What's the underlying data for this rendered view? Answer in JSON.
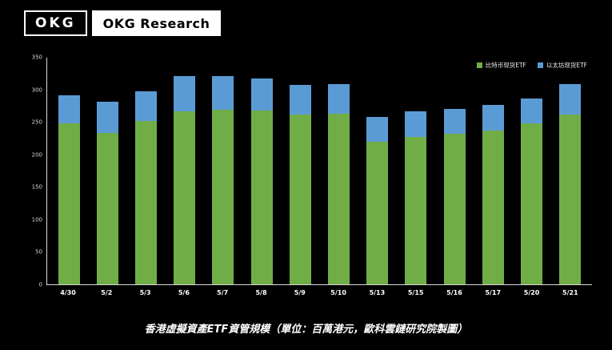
{
  "header": {
    "logo_text": "OKG",
    "brand_text": "OKG Research"
  },
  "caption": "香港虛擬資產ETF資管規模（單位：百萬港元，歐科雲鏈研究院製圖）",
  "colors": {
    "background": "#000000",
    "bitcoin_green": "#70ad47",
    "ethereum_blue": "#5b9bd5",
    "axis": "#d9d9d9",
    "text": "#ffffff"
  },
  "chart_data": {
    "type": "bar",
    "stacked": true,
    "title": "香港虛擬資產ETF資管規模",
    "unit_note": "單位：百萬港元",
    "grid": false,
    "legend_position": "top-right",
    "ylim": [
      0,
      350
    ],
    "yticks": [
      0,
      50,
      100,
      150,
      200,
      250,
      300,
      350
    ],
    "categories": [
      "4/30",
      "5/2",
      "5/3",
      "5/6",
      "5/7",
      "5/8",
      "5/9",
      "5/10",
      "5/13",
      "5/15",
      "5/16",
      "5/17",
      "5/20",
      "5/21"
    ],
    "series": [
      {
        "key": "bitcoin-spot-etf",
        "name": "比特币现货ETF",
        "color": "#70ad47",
        "values": [
          249,
          234,
          252,
          267,
          270,
          269,
          262,
          263,
          220,
          228,
          232,
          237,
          248,
          262
        ]
      },
      {
        "key": "ethereum-spot-etf",
        "name": "以太坊现货ETF",
        "color": "#5b9bd5",
        "values": [
          43,
          48,
          46,
          54,
          51,
          49,
          46,
          46,
          38,
          39,
          39,
          40,
          39,
          47
        ]
      }
    ],
    "totals": [
      292,
      282,
      298,
      321,
      321,
      318,
      308,
      309,
      258,
      267,
      271,
      277,
      287,
      309
    ]
  }
}
